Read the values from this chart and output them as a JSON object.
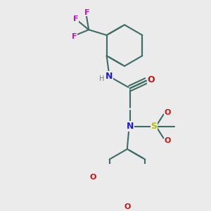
{
  "bg": "#ebebeb",
  "bc": "#3d6e65",
  "bw": 1.5,
  "atom_colors": {
    "N": "#1a1aee",
    "O": "#cc1111",
    "F": "#cc11cc",
    "S": "#bbbb00",
    "H": "#777777"
  },
  "fs": 9,
  "fss": 8
}
